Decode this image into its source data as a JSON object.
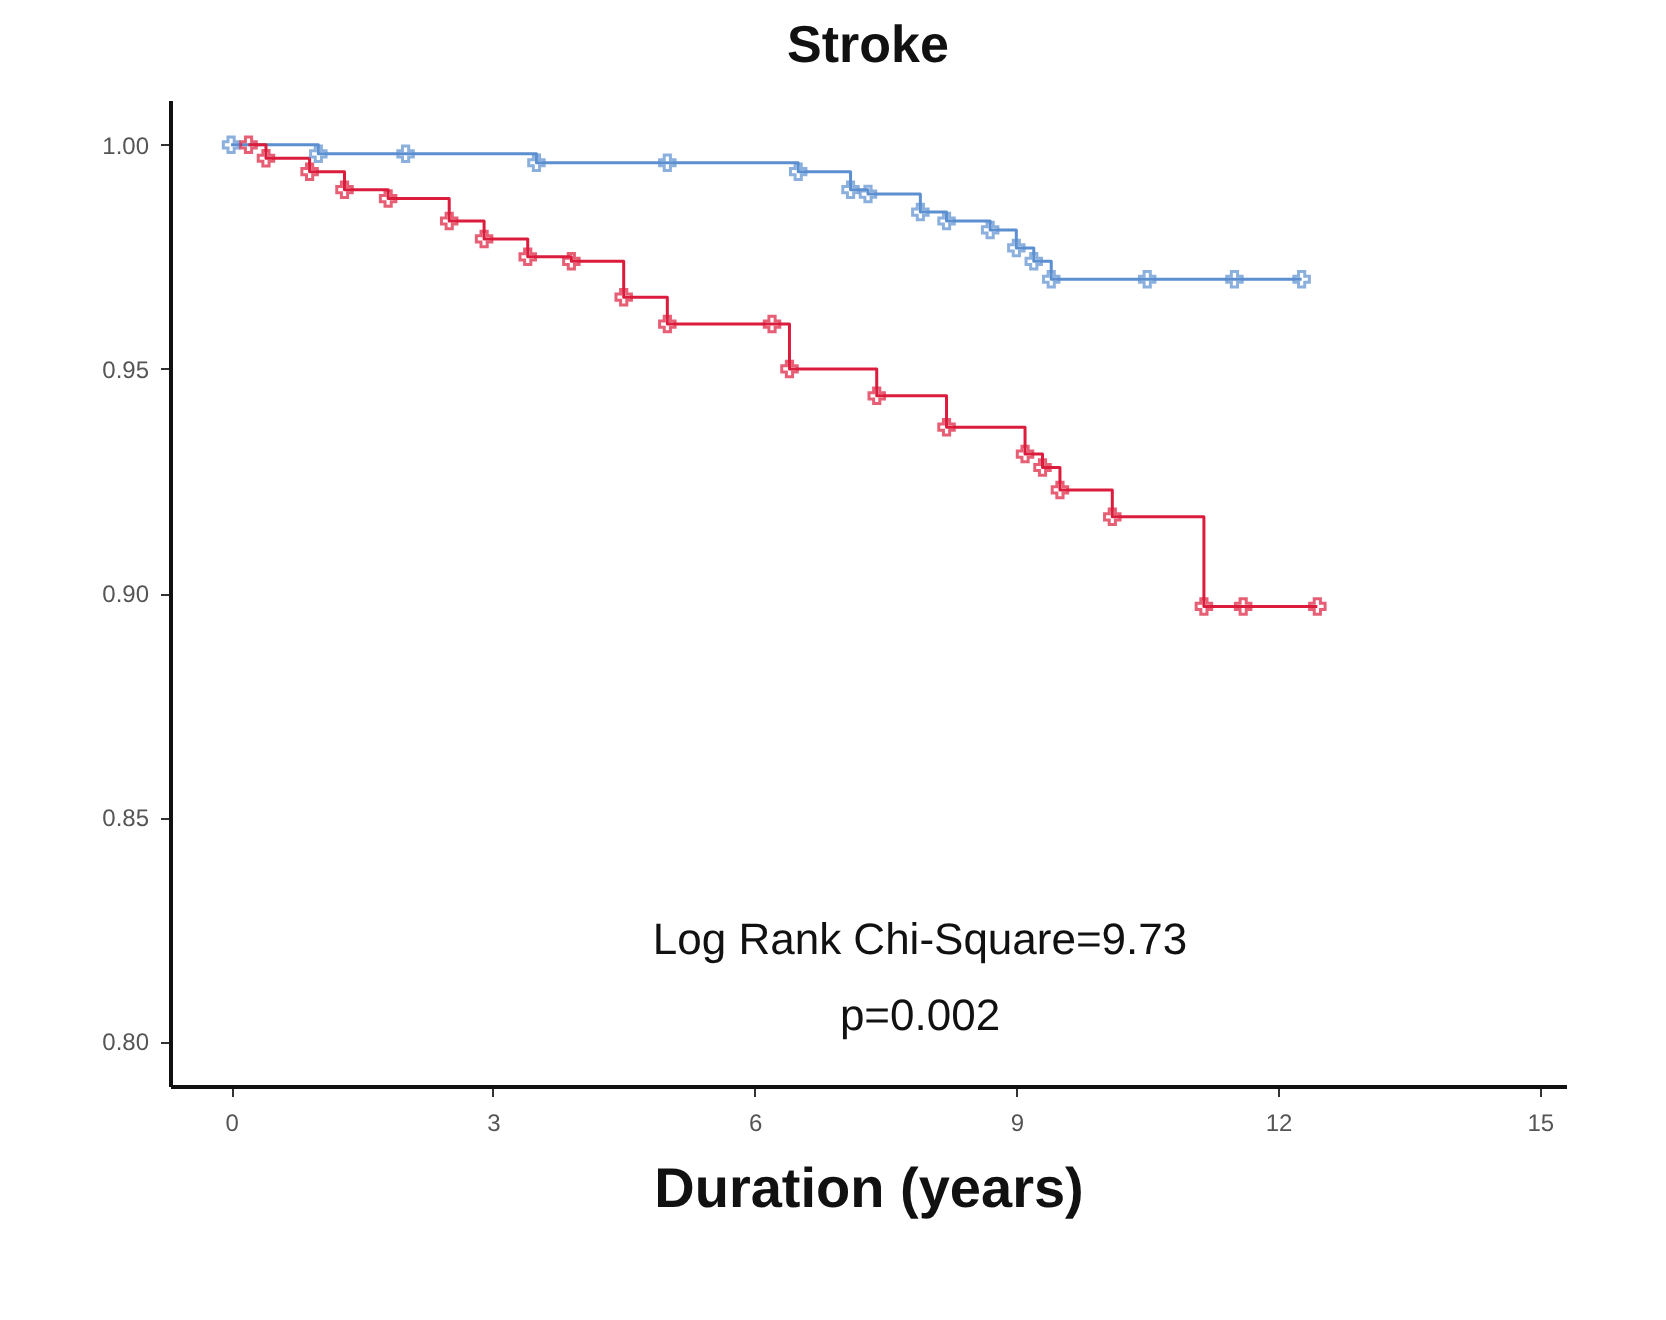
{
  "chart_data": {
    "type": "step",
    "title": "Stroke",
    "xlabel": "Duration (years)",
    "annotations": [
      "Log Rank Chi-Square=9.73",
      "p=0.002"
    ],
    "xlim": [
      -0.7,
      15.3
    ],
    "xticks": [
      0,
      3,
      6,
      9,
      12,
      15
    ],
    "ylim": [
      0.79,
      1.01
    ],
    "yticks": [
      {
        "value": 0.8,
        "label": "0.80"
      },
      {
        "value": 0.85,
        "label": "0.85"
      },
      {
        "value": 0.9,
        "label": "0.90"
      },
      {
        "value": 0.95,
        "label": "0.95"
      },
      {
        "value": 1.0,
        "label": "1.00"
      }
    ],
    "grid": false,
    "legend": false,
    "marker": "cross",
    "line_style": "solid",
    "series": [
      {
        "color": "#5b8fd0",
        "x": [
          0,
          1.0,
          2.0,
          3.5,
          5.0,
          6.5,
          7.1,
          7.3,
          7.9,
          8.2,
          8.7,
          9.0,
          9.2,
          9.4,
          10.5,
          11.5,
          12.27
        ],
        "values": [
          1.0,
          0.998,
          0.998,
          0.996,
          0.996,
          0.994,
          0.99,
          0.989,
          0.985,
          0.983,
          0.981,
          0.977,
          0.974,
          0.97,
          0.97,
          0.97,
          0.97
        ]
      },
      {
        "color": "#dc1c3c",
        "x": [
          0.2,
          0.4,
          0.9,
          1.3,
          1.8,
          2.5,
          2.9,
          3.4,
          3.9,
          4.5,
          5.0,
          6.2,
          6.4,
          7.4,
          8.2,
          9.1,
          9.3,
          9.5,
          10.1,
          11.15,
          11.6,
          12.45
        ],
        "values": [
          1.0,
          0.997,
          0.994,
          0.99,
          0.988,
          0.983,
          0.979,
          0.975,
          0.974,
          0.966,
          0.96,
          0.96,
          0.95,
          0.944,
          0.937,
          0.931,
          0.928,
          0.923,
          0.917,
          0.897,
          0.897,
          0.897
        ]
      }
    ]
  }
}
